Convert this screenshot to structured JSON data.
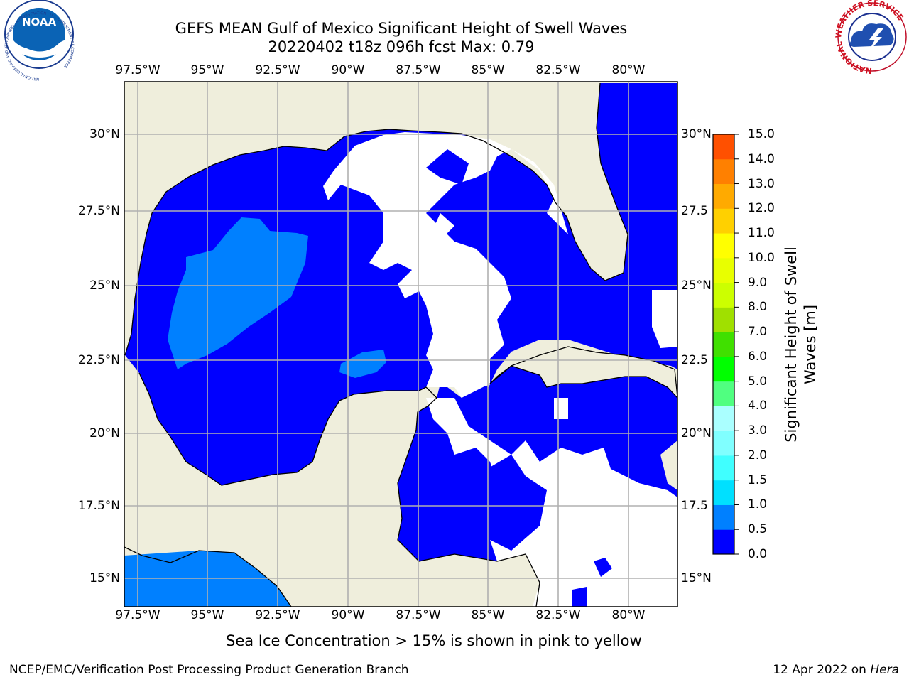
{
  "header": {
    "title_line1": "GEFS MEAN Gulf of Mexico Significant Height of Swell Waves",
    "title_line2": "20220402 t18z 096h fcst   Max: 0.79"
  },
  "map": {
    "lon_labels": [
      "97.5°W",
      "95°W",
      "92.5°W",
      "90°W",
      "87.5°W",
      "85°W",
      "82.5°W",
      "80°W"
    ],
    "lat_labels": [
      "30°N",
      "27.5°N",
      "25°N",
      "22.5°N",
      "20°N",
      "17.5°N",
      "15°N"
    ],
    "lat_labels_right": [
      "30°N",
      "27.5",
      "25°N",
      "22.5",
      "20°N",
      "17.5",
      "15°N"
    ],
    "colors": {
      "land": "#efeedc",
      "sea_low": "#0000ff",
      "sea_mid": "#0080ff",
      "no_data": "#ffffff",
      "grid": "#b0b0b0"
    }
  },
  "colorbar": {
    "label_line1": "Significant Height of Swell",
    "label_line2": "Waves [m]",
    "ticks": [
      "0.0",
      "0.5",
      "1.0",
      "1.5",
      "2.0",
      "3.0",
      "4.0",
      "5.0",
      "6.0",
      "7.0",
      "8.0",
      "9.0",
      "10.0",
      "11.0",
      "12.0",
      "13.0",
      "14.0",
      "15.0"
    ],
    "colors": [
      "#0000ff",
      "#0080ff",
      "#00e0ff",
      "#40ffff",
      "#80ffff",
      "#aaffff",
      "#50ff80",
      "#00ff00",
      "#40e000",
      "#a0e000",
      "#ccff00",
      "#e8ff00",
      "#ffff00",
      "#ffd000",
      "#ffaa00",
      "#ff8000",
      "#ff5000",
      "#ff2000",
      "#ff0000"
    ]
  },
  "footnote": "Sea Ice Concentration > 15% is shown in pink to yellow",
  "credits": {
    "left": "NCEP/EMC/Verification Post Processing Product Generation Branch",
    "right_prefix": "12 Apr 2022 on ",
    "right_machine": "Hera"
  },
  "logos": {
    "noaa_text": "NOAA",
    "noaa_ring_text": "NATIONAL OCEANIC AND ATMOSPHERIC ADMINISTRATION · U.S. DEPARTMENT OF COMMERCE",
    "nws_ring_text": "NATIONAL WEATHER SERVICE"
  }
}
